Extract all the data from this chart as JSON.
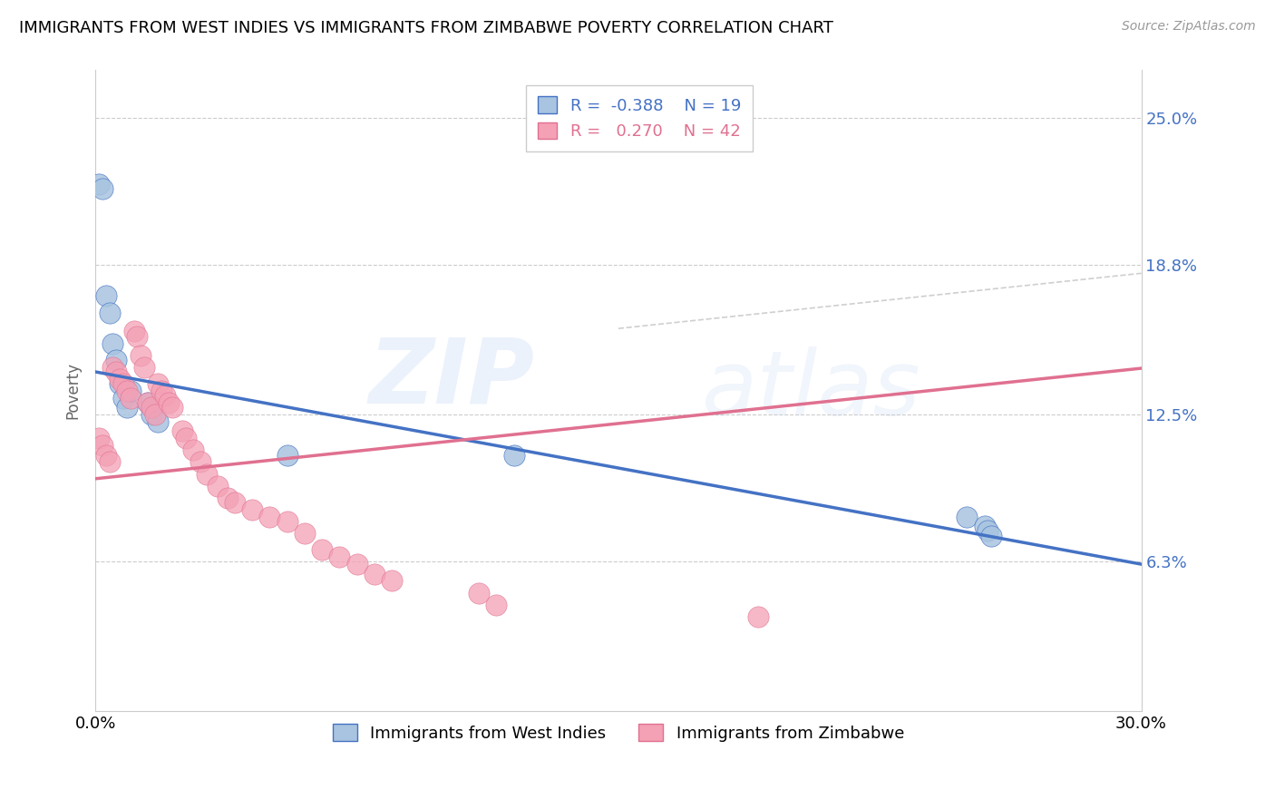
{
  "title": "IMMIGRANTS FROM WEST INDIES VS IMMIGRANTS FROM ZIMBABWE POVERTY CORRELATION CHART",
  "source": "Source: ZipAtlas.com",
  "ylabel": "Poverty",
  "ytick_labels": [
    "6.3%",
    "12.5%",
    "18.8%",
    "25.0%"
  ],
  "ytick_values": [
    0.063,
    0.125,
    0.188,
    0.25
  ],
  "xlim": [
    0.0,
    0.3
  ],
  "ylim": [
    0.0,
    0.27
  ],
  "legend_blue_r": "-0.388",
  "legend_blue_n": "19",
  "legend_pink_r": "0.270",
  "legend_pink_n": "42",
  "legend_label_blue": "Immigrants from West Indies",
  "legend_label_pink": "Immigrants from Zimbabwe",
  "blue_color": "#a8c4e0",
  "pink_color": "#f4a0b5",
  "blue_line_color": "#4472c4",
  "pink_line_color": "#e07090",
  "dashed_line_color": "#cccccc",
  "watermark": "ZIPatlas",
  "west_indies_x": [
    0.001,
    0.002,
    0.003,
    0.004,
    0.005,
    0.006,
    0.007,
    0.008,
    0.009,
    0.015,
    0.016,
    0.018,
    0.055,
    0.12,
    0.25,
    0.255,
    0.256,
    0.257,
    0.01
  ],
  "west_indies_y": [
    0.222,
    0.22,
    0.175,
    0.168,
    0.155,
    0.148,
    0.138,
    0.132,
    0.128,
    0.13,
    0.125,
    0.122,
    0.108,
    0.108,
    0.082,
    0.078,
    0.076,
    0.074,
    0.135
  ],
  "zimbabwe_x": [
    0.001,
    0.002,
    0.003,
    0.004,
    0.005,
    0.006,
    0.007,
    0.008,
    0.009,
    0.01,
    0.011,
    0.012,
    0.013,
    0.014,
    0.015,
    0.016,
    0.017,
    0.018,
    0.019,
    0.02,
    0.021,
    0.022,
    0.025,
    0.026,
    0.028,
    0.03,
    0.032,
    0.035,
    0.038,
    0.04,
    0.045,
    0.05,
    0.055,
    0.06,
    0.065,
    0.07,
    0.075,
    0.08,
    0.085,
    0.11,
    0.115,
    0.19
  ],
  "zimbabwe_y": [
    0.115,
    0.112,
    0.108,
    0.105,
    0.145,
    0.143,
    0.14,
    0.138,
    0.135,
    0.132,
    0.16,
    0.158,
    0.15,
    0.145,
    0.13,
    0.128,
    0.125,
    0.138,
    0.135,
    0.133,
    0.13,
    0.128,
    0.118,
    0.115,
    0.11,
    0.105,
    0.1,
    0.095,
    0.09,
    0.088,
    0.085,
    0.082,
    0.08,
    0.075,
    0.068,
    0.065,
    0.062,
    0.058,
    0.055,
    0.05,
    0.045,
    0.04
  ],
  "blue_intercept": 0.143,
  "blue_slope": -0.27,
  "pink_intercept": 0.098,
  "pink_slope": 0.155
}
